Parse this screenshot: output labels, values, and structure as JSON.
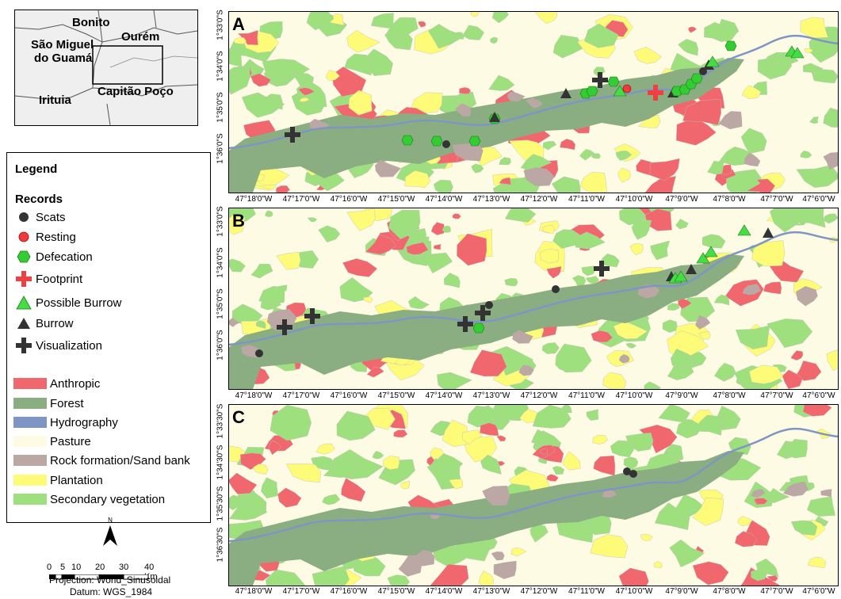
{
  "inset": {
    "labels": [
      "Bonito",
      "São Miguel",
      "do Guamá",
      "Ourém",
      "Irituia",
      "Capitão Poço"
    ]
  },
  "legend": {
    "title": "Legend",
    "records_title": "Records",
    "records": [
      {
        "label": "Scats",
        "icon": "dark-circle-icon",
        "color": "#333333"
      },
      {
        "label": "Resting",
        "icon": "red-circle-icon",
        "color": "#ee3b3b"
      },
      {
        "label": "Defecation",
        "icon": "green-hexagon-icon",
        "color": "#33cc33"
      },
      {
        "label": "Footprint",
        "icon": "red-cross-icon",
        "color": "#ee4040"
      },
      {
        "label": "Possible Burrow",
        "icon": "green-triangle-icon",
        "color": "#44dd44"
      },
      {
        "label": "Burrow",
        "icon": "dark-triangle-icon",
        "color": "#333333"
      },
      {
        "label": "Visualization",
        "icon": "dark-cross-icon",
        "color": "#333333"
      }
    ],
    "classes": [
      {
        "label": "Anthropic",
        "color": "#f0686e"
      },
      {
        "label": "Forest",
        "color": "#8aae82"
      },
      {
        "label": "Hydrography",
        "color": "#7f96c4"
      },
      {
        "label": "Pasture",
        "color": "#fdfbe3"
      },
      {
        "label": "Rock formation/Sand bank",
        "color": "#bba7a3"
      },
      {
        "label": "Plantation",
        "color": "#fdfb78"
      },
      {
        "label": "Secondary vegetation",
        "color": "#9ee07e"
      }
    ]
  },
  "north": "N",
  "scale": {
    "ticks": [
      "0",
      "5",
      "10",
      "20",
      "30",
      "40 Km"
    ]
  },
  "projection": "Projection: World_Sinusoidal",
  "datum": "Datum: WGS_1984",
  "panels": [
    {
      "letter": "A",
      "lat_labels": [
        "1°33'0\"S",
        "1°34'0\"S",
        "1°35'0\"S",
        "1°36'0\"S"
      ]
    },
    {
      "letter": "B",
      "lat_labels": [
        "1°33'0\"S",
        "1°34'0\"S",
        "1°35'0\"S",
        "1°36'0\"S"
      ]
    },
    {
      "letter": "C",
      "lat_labels": [
        "1°33'30\"S",
        "1°34'30\"S",
        "1°35'30\"S",
        "1°36'30\"S"
      ]
    }
  ],
  "lon_labels": [
    "47°18'0\"W",
    "47°17'0\"W",
    "47°16'0\"W",
    "47°15'0\"W",
    "47°14'0\"W",
    "47°13'0\"W",
    "47°12'0\"W",
    "47°11'0\"W",
    "47°10'0\"W",
    "47°9'0\"W",
    "47°8'0\"W",
    "47°7'0\"W",
    "47°6'0\"W"
  ]
}
